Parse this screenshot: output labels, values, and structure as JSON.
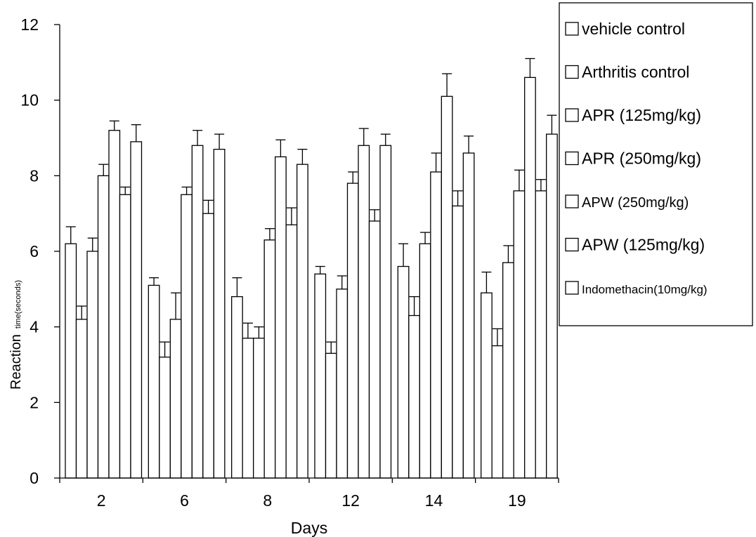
{
  "chart_data": {
    "type": "bar",
    "title": "",
    "xlabel": "Days",
    "ylabel": "Reaction",
    "ylabel_small": "time(seconds)",
    "categories": [
      "2",
      "6",
      "8",
      "12",
      "14",
      "19"
    ],
    "ylim": [
      0,
      12
    ],
    "yticks": [
      "0",
      "2",
      "4",
      "6",
      "8",
      "10",
      "12"
    ],
    "grid": false,
    "legend_position": "right",
    "series": [
      {
        "name": "vehicle control",
        "values": [
          6.2,
          5.1,
          4.8,
          5.4,
          5.6,
          4.9
        ],
        "errors": [
          0.45,
          0.2,
          0.5,
          0.2,
          0.6,
          0.55
        ]
      },
      {
        "name": "Arthritis control",
        "values": [
          4.2,
          3.2,
          3.7,
          3.3,
          4.3,
          3.5
        ],
        "errors": [
          0.35,
          0.4,
          0.4,
          0.3,
          0.5,
          0.45
        ]
      },
      {
        "name": "APR (125mg/kg)",
        "values": [
          6.0,
          4.2,
          3.7,
          5.0,
          6.2,
          5.7
        ],
        "errors": [
          0.35,
          0.7,
          0.3,
          0.35,
          0.3,
          0.45
        ]
      },
      {
        "name": "APR (250mg/kg)",
        "values": [
          8.0,
          7.5,
          6.3,
          7.8,
          8.1,
          7.6
        ],
        "errors": [
          0.3,
          0.2,
          0.3,
          0.3,
          0.5,
          0.55
        ]
      },
      {
        "name": "APW (250mg/kg)",
        "values": [
          9.2,
          8.8,
          8.5,
          8.8,
          10.1,
          10.6
        ],
        "errors": [
          0.25,
          0.4,
          0.45,
          0.45,
          0.6,
          0.5
        ]
      },
      {
        "name": "APW (125mg/kg)",
        "values": [
          7.5,
          7.0,
          6.7,
          6.8,
          7.2,
          7.6
        ],
        "errors": [
          0.2,
          0.35,
          0.45,
          0.3,
          0.4,
          0.3
        ]
      },
      {
        "name": "Indomethacin(10mg/kg)",
        "values": [
          8.9,
          8.7,
          8.3,
          8.8,
          8.6,
          9.1
        ],
        "errors": [
          0.45,
          0.4,
          0.4,
          0.3,
          0.45,
          0.5
        ]
      }
    ]
  }
}
